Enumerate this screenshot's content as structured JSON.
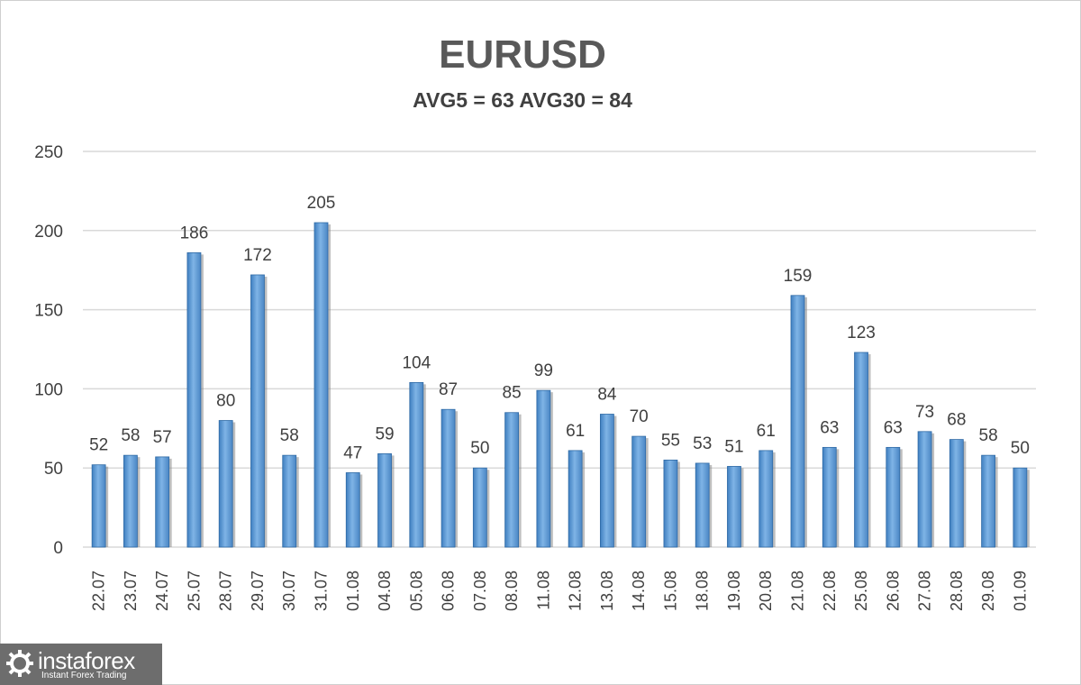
{
  "chart_data": {
    "type": "bar",
    "title": "EURUSD",
    "subtitle": "AVG5 = 63 AVG30 = 84",
    "xlabel": "",
    "ylabel": "",
    "ylim": [
      0,
      250
    ],
    "yticks": [
      0,
      50,
      100,
      150,
      200,
      250
    ],
    "grid": true,
    "categories": [
      "22.07",
      "23.07",
      "24.07",
      "25.07",
      "28.07",
      "29.07",
      "30.07",
      "31.07",
      "01.08",
      "04.08",
      "05.08",
      "06.08",
      "07.08",
      "08.08",
      "11.08",
      "12.08",
      "13.08",
      "14.08",
      "15.08",
      "18.08",
      "19.08",
      "20.08",
      "21.08",
      "22.08",
      "25.08",
      "26.08",
      "27.08",
      "28.08",
      "29.08",
      "01.09"
    ],
    "values": [
      52,
      58,
      57,
      186,
      80,
      172,
      58,
      205,
      47,
      59,
      104,
      87,
      50,
      85,
      99,
      61,
      84,
      70,
      55,
      53,
      51,
      61,
      159,
      63,
      123,
      63,
      73,
      68,
      58,
      50
    ],
    "bar_color": "#5b9bd5"
  },
  "logo": {
    "name": "instaforex",
    "tagline": "Instant Forex Trading"
  }
}
